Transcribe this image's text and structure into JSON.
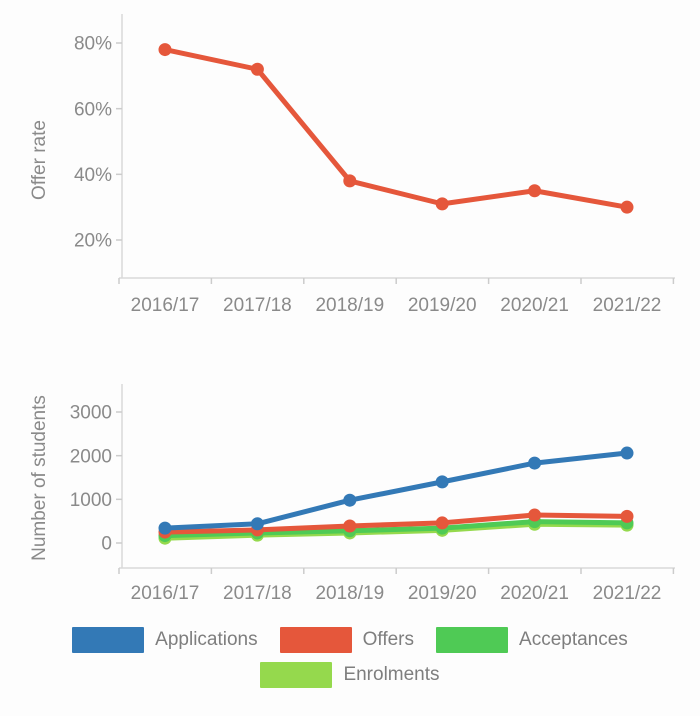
{
  "page": {
    "background": "#fdfdfd",
    "text_gray": "#8a8a8a",
    "axis_line_color": "#d9d9d9",
    "tick_color": "#cccccc"
  },
  "chart_data": [
    {
      "type": "line",
      "title": "",
      "xlabel": "",
      "ylabel": "Offer rate",
      "categories": [
        "2016/17",
        "2017/18",
        "2018/19",
        "2019/20",
        "2020/21",
        "2021/22"
      ],
      "y_ticks": [
        {
          "label": "80%",
          "value": 80
        },
        {
          "label": "60%",
          "value": 60
        },
        {
          "label": "40%",
          "value": 40
        },
        {
          "label": "20%",
          "value": 20
        }
      ],
      "ylim": [
        20,
        80
      ],
      "grid": false,
      "legend_position": "none",
      "series": [
        {
          "name": "Offer rate",
          "color": "#e5573b",
          "values": [
            78,
            72,
            38,
            31,
            35,
            30
          ]
        }
      ]
    },
    {
      "type": "line",
      "title": "",
      "xlabel": "",
      "ylabel": "Number of students",
      "categories": [
        "2016/17",
        "2017/18",
        "2018/19",
        "2019/20",
        "2020/21",
        "2021/22"
      ],
      "y_ticks": [
        {
          "label": "3000",
          "value": 3000
        },
        {
          "label": "2000",
          "value": 2000
        },
        {
          "label": "1000",
          "value": 1000
        },
        {
          "label": "0",
          "value": 0
        }
      ],
      "ylim": [
        0,
        3000
      ],
      "grid": false,
      "legend_position": "bottom",
      "series": [
        {
          "name": "Applications",
          "color": "#3379b6",
          "values": [
            340,
            440,
            980,
            1400,
            1830,
            2060
          ]
        },
        {
          "name": "Offers",
          "color": "#e5573b",
          "values": [
            250,
            300,
            390,
            460,
            640,
            610
          ]
        },
        {
          "name": "Acceptances",
          "color": "#4fca55",
          "values": [
            170,
            230,
            280,
            340,
            490,
            460
          ]
        },
        {
          "name": "Enrolments",
          "color": "#95d94d",
          "values": [
            110,
            180,
            230,
            290,
            430,
            410
          ]
        }
      ]
    }
  ],
  "legend": {
    "rows": [
      [
        {
          "label": "Applications",
          "color": "#3379b6"
        },
        {
          "label": "Offers",
          "color": "#e5573b"
        },
        {
          "label": "Acceptances",
          "color": "#4fca55"
        }
      ],
      [
        {
          "label": "Enrolments",
          "color": "#95d94d"
        }
      ]
    ]
  }
}
